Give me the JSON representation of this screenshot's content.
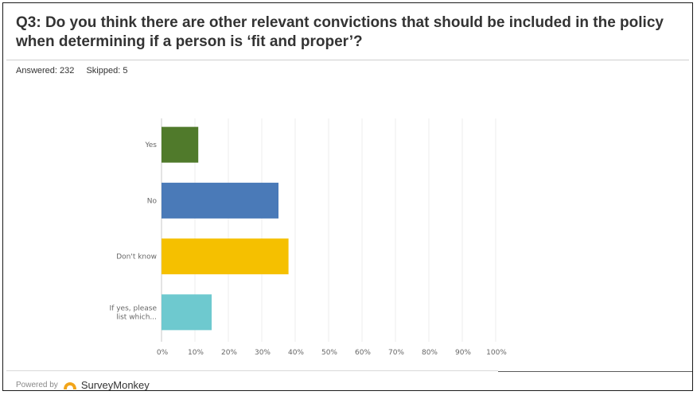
{
  "question": {
    "title": "Q3: Do you think there are other relevant convictions that should be included in the policy when determining if a person is ‘fit and proper’?",
    "answered_label": "Answered: 232",
    "skipped_label": "Skipped: 5"
  },
  "footer": {
    "powered_by": "Powered by",
    "brand": "SurveyMonkey"
  },
  "colors": {
    "logo": "#f2a51a"
  },
  "chart_data": {
    "type": "bar",
    "orientation": "horizontal",
    "categories": [
      "Yes",
      "No",
      "Don't know",
      "If yes, please list which..."
    ],
    "category_lines": [
      [
        "Yes"
      ],
      [
        "No"
      ],
      [
        "Don't know"
      ],
      [
        "If yes, please",
        "list which..."
      ]
    ],
    "values": [
      11,
      35,
      38,
      15
    ],
    "unit": "%",
    "colors": [
      "#507a2b",
      "#4a7ab8",
      "#f5c000",
      "#6ec9cf"
    ],
    "xlim": [
      0,
      100
    ],
    "ticks": [
      "0%",
      "10%",
      "20%",
      "30%",
      "40%",
      "50%",
      "60%",
      "70%",
      "80%",
      "90%",
      "100%"
    ],
    "grid": true,
    "title": "",
    "xlabel": "",
    "ylabel": ""
  }
}
